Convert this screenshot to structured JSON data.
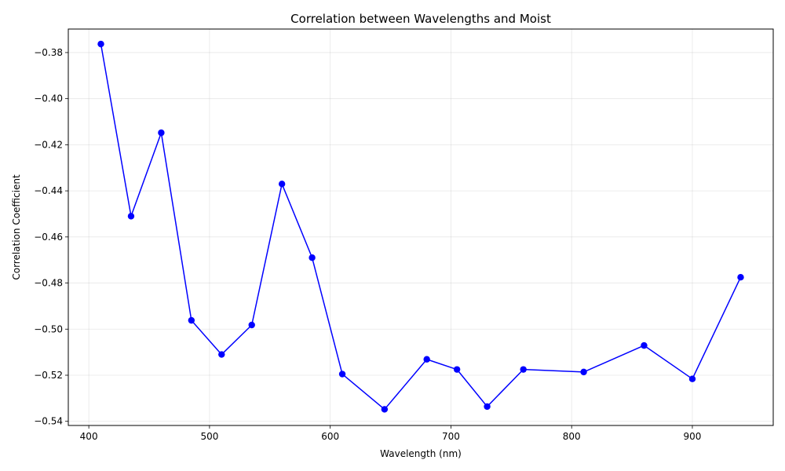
{
  "chart_data": {
    "type": "line",
    "title": "Correlation between Wavelengths and Moist",
    "xlabel": "Wavelength (nm)",
    "ylabel": "Correlation Coefficient",
    "xlim": [
      383,
      967
    ],
    "ylim": [
      -0.5418,
      -0.3698
    ],
    "x_ticks": [
      400,
      500,
      600,
      700,
      800,
      900
    ],
    "y_ticks": [
      -0.38,
      -0.4,
      -0.42,
      -0.44,
      -0.46,
      -0.48,
      -0.5,
      -0.52,
      -0.54
    ],
    "x_tick_labels": [
      "400",
      "500",
      "600",
      "700",
      "800",
      "900"
    ],
    "y_tick_labels": [
      "−0.38",
      "−0.40",
      "−0.42",
      "−0.44",
      "−0.46",
      "−0.48",
      "−0.50",
      "−0.52",
      "−0.54"
    ],
    "grid": true,
    "color": "#0000ff",
    "series": [
      {
        "name": "Correlation",
        "x": [
          410,
          435,
          460,
          485,
          510,
          535,
          560,
          585,
          610,
          645,
          680,
          705,
          730,
          760,
          810,
          860,
          900,
          940
        ],
        "values": [
          -0.3763,
          -0.451,
          -0.4148,
          -0.4962,
          -0.511,
          -0.4982,
          -0.437,
          -0.469,
          -0.5195,
          -0.5348,
          -0.5131,
          -0.5175,
          -0.5336,
          -0.5175,
          -0.5186,
          -0.5071,
          -0.5216,
          -0.4775
        ]
      }
    ]
  }
}
